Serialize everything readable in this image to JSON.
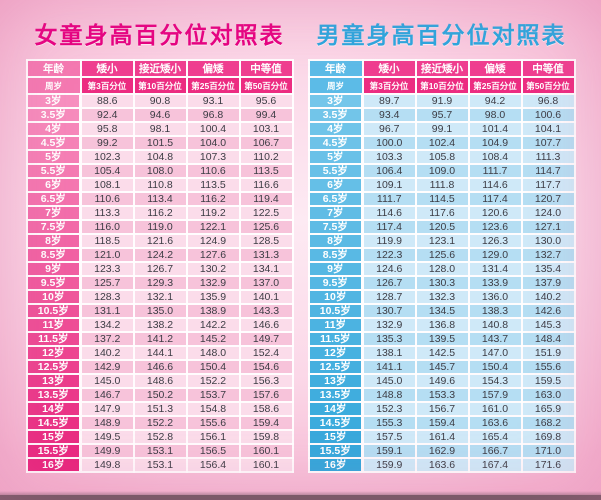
{
  "colors": {
    "girls_title": "#e60080",
    "boys_title": "#2ba7de",
    "header1": "#ef3e90",
    "header2": "#ec2c81",
    "girls_age_header": "#f479b1",
    "boys_age_header": "#5cbbe7",
    "girls_stripe_a": "#fbdcea",
    "girls_stripe_b": "#f7c3da",
    "boys_stripe_a": "#cfe9f8",
    "boys_stripe_b": "#b5def3",
    "cell_text": "#3c3c44",
    "bottom_bar": "#6e5761",
    "girls_age_top": "#f78fbf",
    "girls_age_bottom": "#e8257d",
    "boys_age_top": "#74c6ea",
    "boys_age_bottom": "#33a7db"
  },
  "chart_data": [
    {
      "type": "table",
      "gender": "girls",
      "title": "女童身高百分位对照表",
      "header_row1": [
        "年龄",
        "矮小",
        "接近矮小",
        "偏矮",
        "中等值"
      ],
      "header_row2": [
        "周岁",
        "第3百分位",
        "第10百分位",
        "第25百分位",
        "第50百分位"
      ],
      "age_color_top": "#f78fbf",
      "age_color_bottom": "#e8257d",
      "rows": [
        {
          "age": "3岁",
          "values": [
            "88.6",
            "90.8",
            "93.1",
            "95.6"
          ]
        },
        {
          "age": "3.5岁",
          "values": [
            "92.4",
            "94.6",
            "96.8",
            "99.4"
          ]
        },
        {
          "age": "4岁",
          "values": [
            "95.8",
            "98.1",
            "100.4",
            "103.1"
          ]
        },
        {
          "age": "4.5岁",
          "values": [
            "99.2",
            "101.5",
            "104.0",
            "106.7"
          ]
        },
        {
          "age": "5岁",
          "values": [
            "102.3",
            "104.8",
            "107.3",
            "110.2"
          ]
        },
        {
          "age": "5.5岁",
          "values": [
            "105.4",
            "108.0",
            "110.6",
            "113.5"
          ]
        },
        {
          "age": "6岁",
          "values": [
            "108.1",
            "110.8",
            "113.5",
            "116.6"
          ]
        },
        {
          "age": "6.5岁",
          "values": [
            "110.6",
            "113.4",
            "116.2",
            "119.4"
          ]
        },
        {
          "age": "7岁",
          "values": [
            "113.3",
            "116.2",
            "119.2",
            "122.5"
          ]
        },
        {
          "age": "7.5岁",
          "values": [
            "116.0",
            "119.0",
            "122.1",
            "125.6"
          ]
        },
        {
          "age": "8岁",
          "values": [
            "118.5",
            "121.6",
            "124.9",
            "128.5"
          ]
        },
        {
          "age": "8.5岁",
          "values": [
            "121.0",
            "124.2",
            "127.6",
            "131.3"
          ]
        },
        {
          "age": "9岁",
          "values": [
            "123.3",
            "126.7",
            "130.2",
            "134.1"
          ]
        },
        {
          "age": "9.5岁",
          "values": [
            "125.7",
            "129.3",
            "132.9",
            "137.0"
          ]
        },
        {
          "age": "10岁",
          "values": [
            "128.3",
            "132.1",
            "135.9",
            "140.1"
          ]
        },
        {
          "age": "10.5岁",
          "values": [
            "131.1",
            "135.0",
            "138.9",
            "143.3"
          ]
        },
        {
          "age": "11岁",
          "values": [
            "134.2",
            "138.2",
            "142.2",
            "146.6"
          ]
        },
        {
          "age": "11.5岁",
          "values": [
            "137.2",
            "141.2",
            "145.2",
            "149.7"
          ]
        },
        {
          "age": "12岁",
          "values": [
            "140.2",
            "144.1",
            "148.0",
            "152.4"
          ]
        },
        {
          "age": "12.5岁",
          "values": [
            "142.9",
            "146.6",
            "150.4",
            "154.6"
          ]
        },
        {
          "age": "13岁",
          "values": [
            "145.0",
            "148.6",
            "152.2",
            "156.3"
          ]
        },
        {
          "age": "13.5岁",
          "values": [
            "146.7",
            "150.2",
            "153.7",
            "157.6"
          ]
        },
        {
          "age": "14岁",
          "values": [
            "147.9",
            "151.3",
            "154.8",
            "158.6"
          ]
        },
        {
          "age": "14.5岁",
          "values": [
            "148.9",
            "152.2",
            "155.6",
            "159.4"
          ]
        },
        {
          "age": "15岁",
          "values": [
            "149.5",
            "152.8",
            "156.1",
            "159.8"
          ]
        },
        {
          "age": "15.5岁",
          "values": [
            "149.9",
            "153.1",
            "156.5",
            "160.1"
          ]
        },
        {
          "age": "16岁",
          "values": [
            "149.8",
            "153.1",
            "156.4",
            "160.1"
          ]
        }
      ]
    },
    {
      "type": "table",
      "gender": "boys",
      "title": "男童身高百分位对照表",
      "header_row1": [
        "年龄",
        "矮小",
        "接近矮小",
        "偏矮",
        "中等值"
      ],
      "header_row2": [
        "周岁",
        "第3百分位",
        "第10百分位",
        "第25百分位",
        "第50百分位"
      ],
      "age_color_top": "#74c6ea",
      "age_color_bottom": "#33a7db",
      "rows": [
        {
          "age": "3岁",
          "values": [
            "89.7",
            "91.9",
            "94.2",
            "96.8"
          ]
        },
        {
          "age": "3.5岁",
          "values": [
            "93.4",
            "95.7",
            "98.0",
            "100.6"
          ]
        },
        {
          "age": "4岁",
          "values": [
            "96.7",
            "99.1",
            "101.4",
            "104.1"
          ]
        },
        {
          "age": "4.5岁",
          "values": [
            "100.0",
            "102.4",
            "104.9",
            "107.7"
          ]
        },
        {
          "age": "5岁",
          "values": [
            "103.3",
            "105.8",
            "108.4",
            "111.3"
          ]
        },
        {
          "age": "5.5岁",
          "values": [
            "106.4",
            "109.0",
            "111.7",
            "114.7"
          ]
        },
        {
          "age": "6岁",
          "values": [
            "109.1",
            "111.8",
            "114.6",
            "117.7"
          ]
        },
        {
          "age": "6.5岁",
          "values": [
            "111.7",
            "114.5",
            "117.4",
            "120.7"
          ]
        },
        {
          "age": "7岁",
          "values": [
            "114.6",
            "117.6",
            "120.6",
            "124.0"
          ]
        },
        {
          "age": "7.5岁",
          "values": [
            "117.4",
            "120.5",
            "123.6",
            "127.1"
          ]
        },
        {
          "age": "8岁",
          "values": [
            "119.9",
            "123.1",
            "126.3",
            "130.0"
          ]
        },
        {
          "age": "8.5岁",
          "values": [
            "122.3",
            "125.6",
            "129.0",
            "132.7"
          ]
        },
        {
          "age": "9岁",
          "values": [
            "124.6",
            "128.0",
            "131.4",
            "135.4"
          ]
        },
        {
          "age": "9.5岁",
          "values": [
            "126.7",
            "130.3",
            "133.9",
            "137.9"
          ]
        },
        {
          "age": "10岁",
          "values": [
            "128.7",
            "132.3",
            "136.0",
            "140.2"
          ]
        },
        {
          "age": "10.5岁",
          "values": [
            "130.7",
            "134.5",
            "138.3",
            "142.6"
          ]
        },
        {
          "age": "11岁",
          "values": [
            "132.9",
            "136.8",
            "140.8",
            "145.3"
          ]
        },
        {
          "age": "11.5岁",
          "values": [
            "135.3",
            "139.5",
            "143.7",
            "148.4"
          ]
        },
        {
          "age": "12岁",
          "values": [
            "138.1",
            "142.5",
            "147.0",
            "151.9"
          ]
        },
        {
          "age": "12.5岁",
          "values": [
            "141.1",
            "145.7",
            "150.4",
            "155.6"
          ]
        },
        {
          "age": "13岁",
          "values": [
            "145.0",
            "149.6",
            "154.3",
            "159.5"
          ]
        },
        {
          "age": "13.5岁",
          "values": [
            "148.8",
            "153.3",
            "157.9",
            "163.0"
          ]
        },
        {
          "age": "14岁",
          "values": [
            "152.3",
            "156.7",
            "161.0",
            "165.9"
          ]
        },
        {
          "age": "14.5岁",
          "values": [
            "155.3",
            "159.4",
            "163.6",
            "168.2"
          ]
        },
        {
          "age": "15岁",
          "values": [
            "157.5",
            "161.4",
            "165.4",
            "169.8"
          ]
        },
        {
          "age": "15.5岁",
          "values": [
            "159.1",
            "162.9",
            "166.7",
            "171.0"
          ]
        },
        {
          "age": "16岁",
          "values": [
            "159.9",
            "163.6",
            "167.4",
            "171.6"
          ]
        }
      ]
    }
  ]
}
